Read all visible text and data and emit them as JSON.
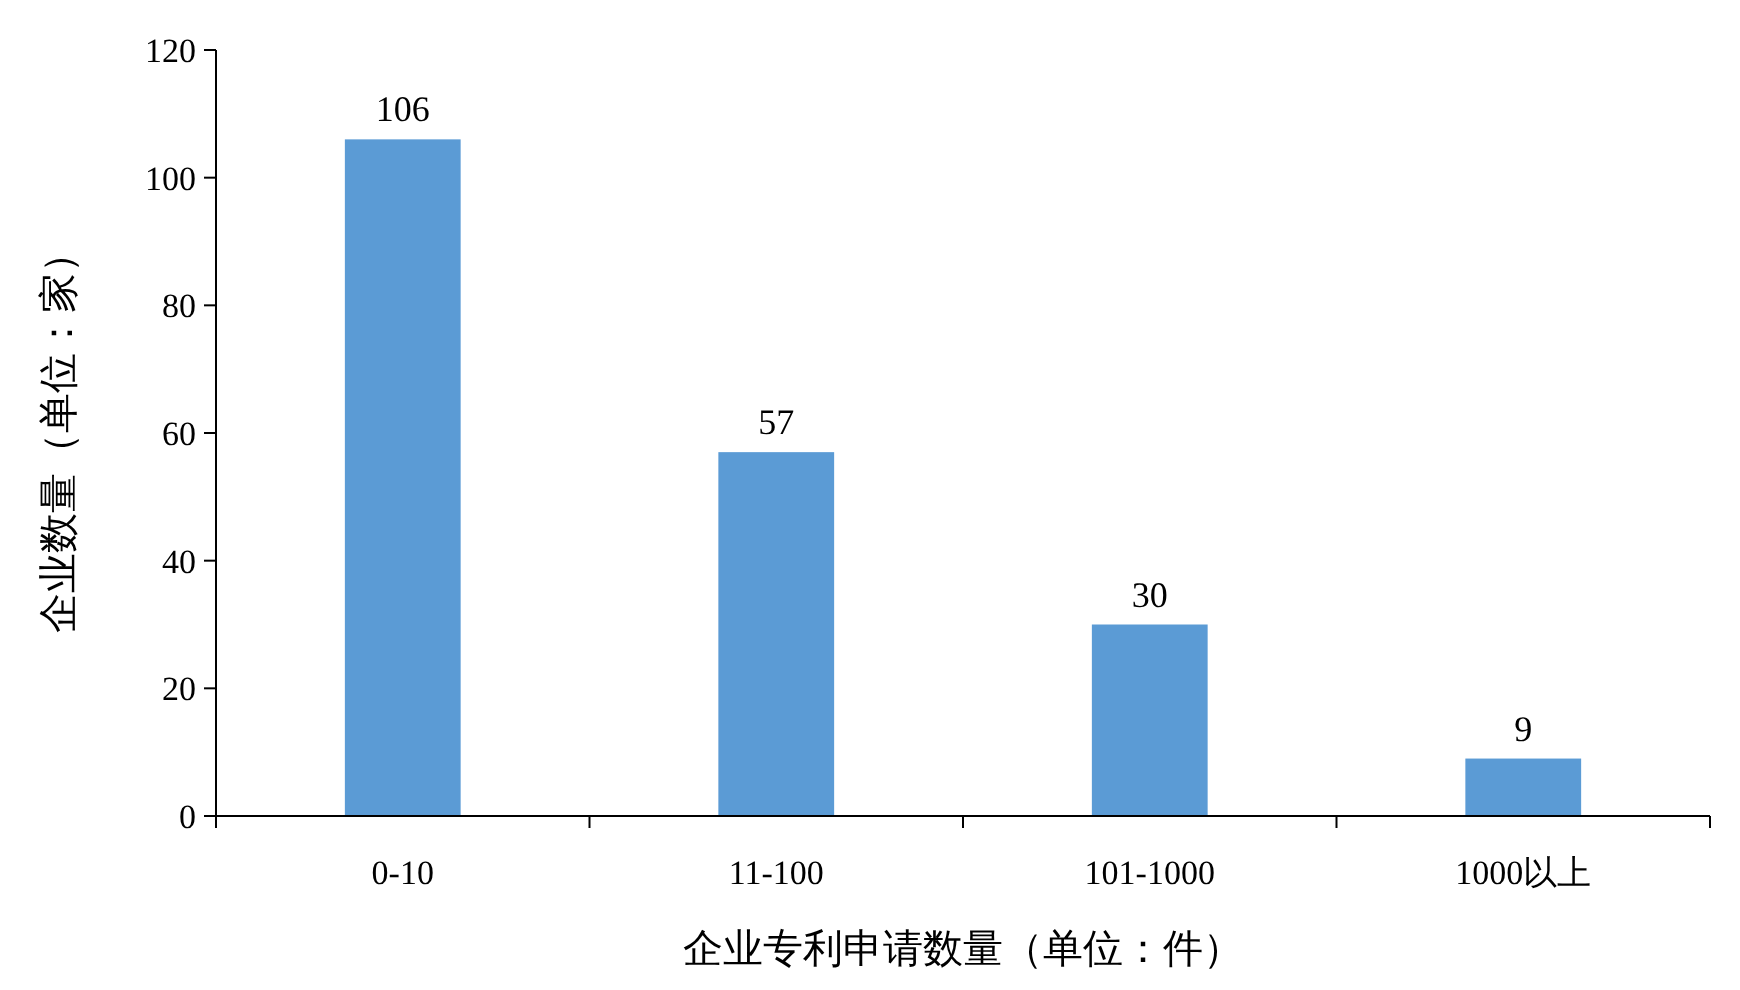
{
  "chart_data": {
    "type": "bar",
    "xlabel": "企业专利申请数量（单位：件）",
    "ylabel": "企业数量（单位：家）",
    "categories": [
      "0-10",
      "11-100",
      "101-1000",
      "1000以上"
    ],
    "values": [
      106,
      57,
      30,
      9
    ],
    "color": "#5b9bd5",
    "ylim": [
      0,
      120
    ],
    "yticks": [
      0,
      20,
      40,
      60,
      80,
      100,
      120
    ],
    "data_labels": true
  }
}
